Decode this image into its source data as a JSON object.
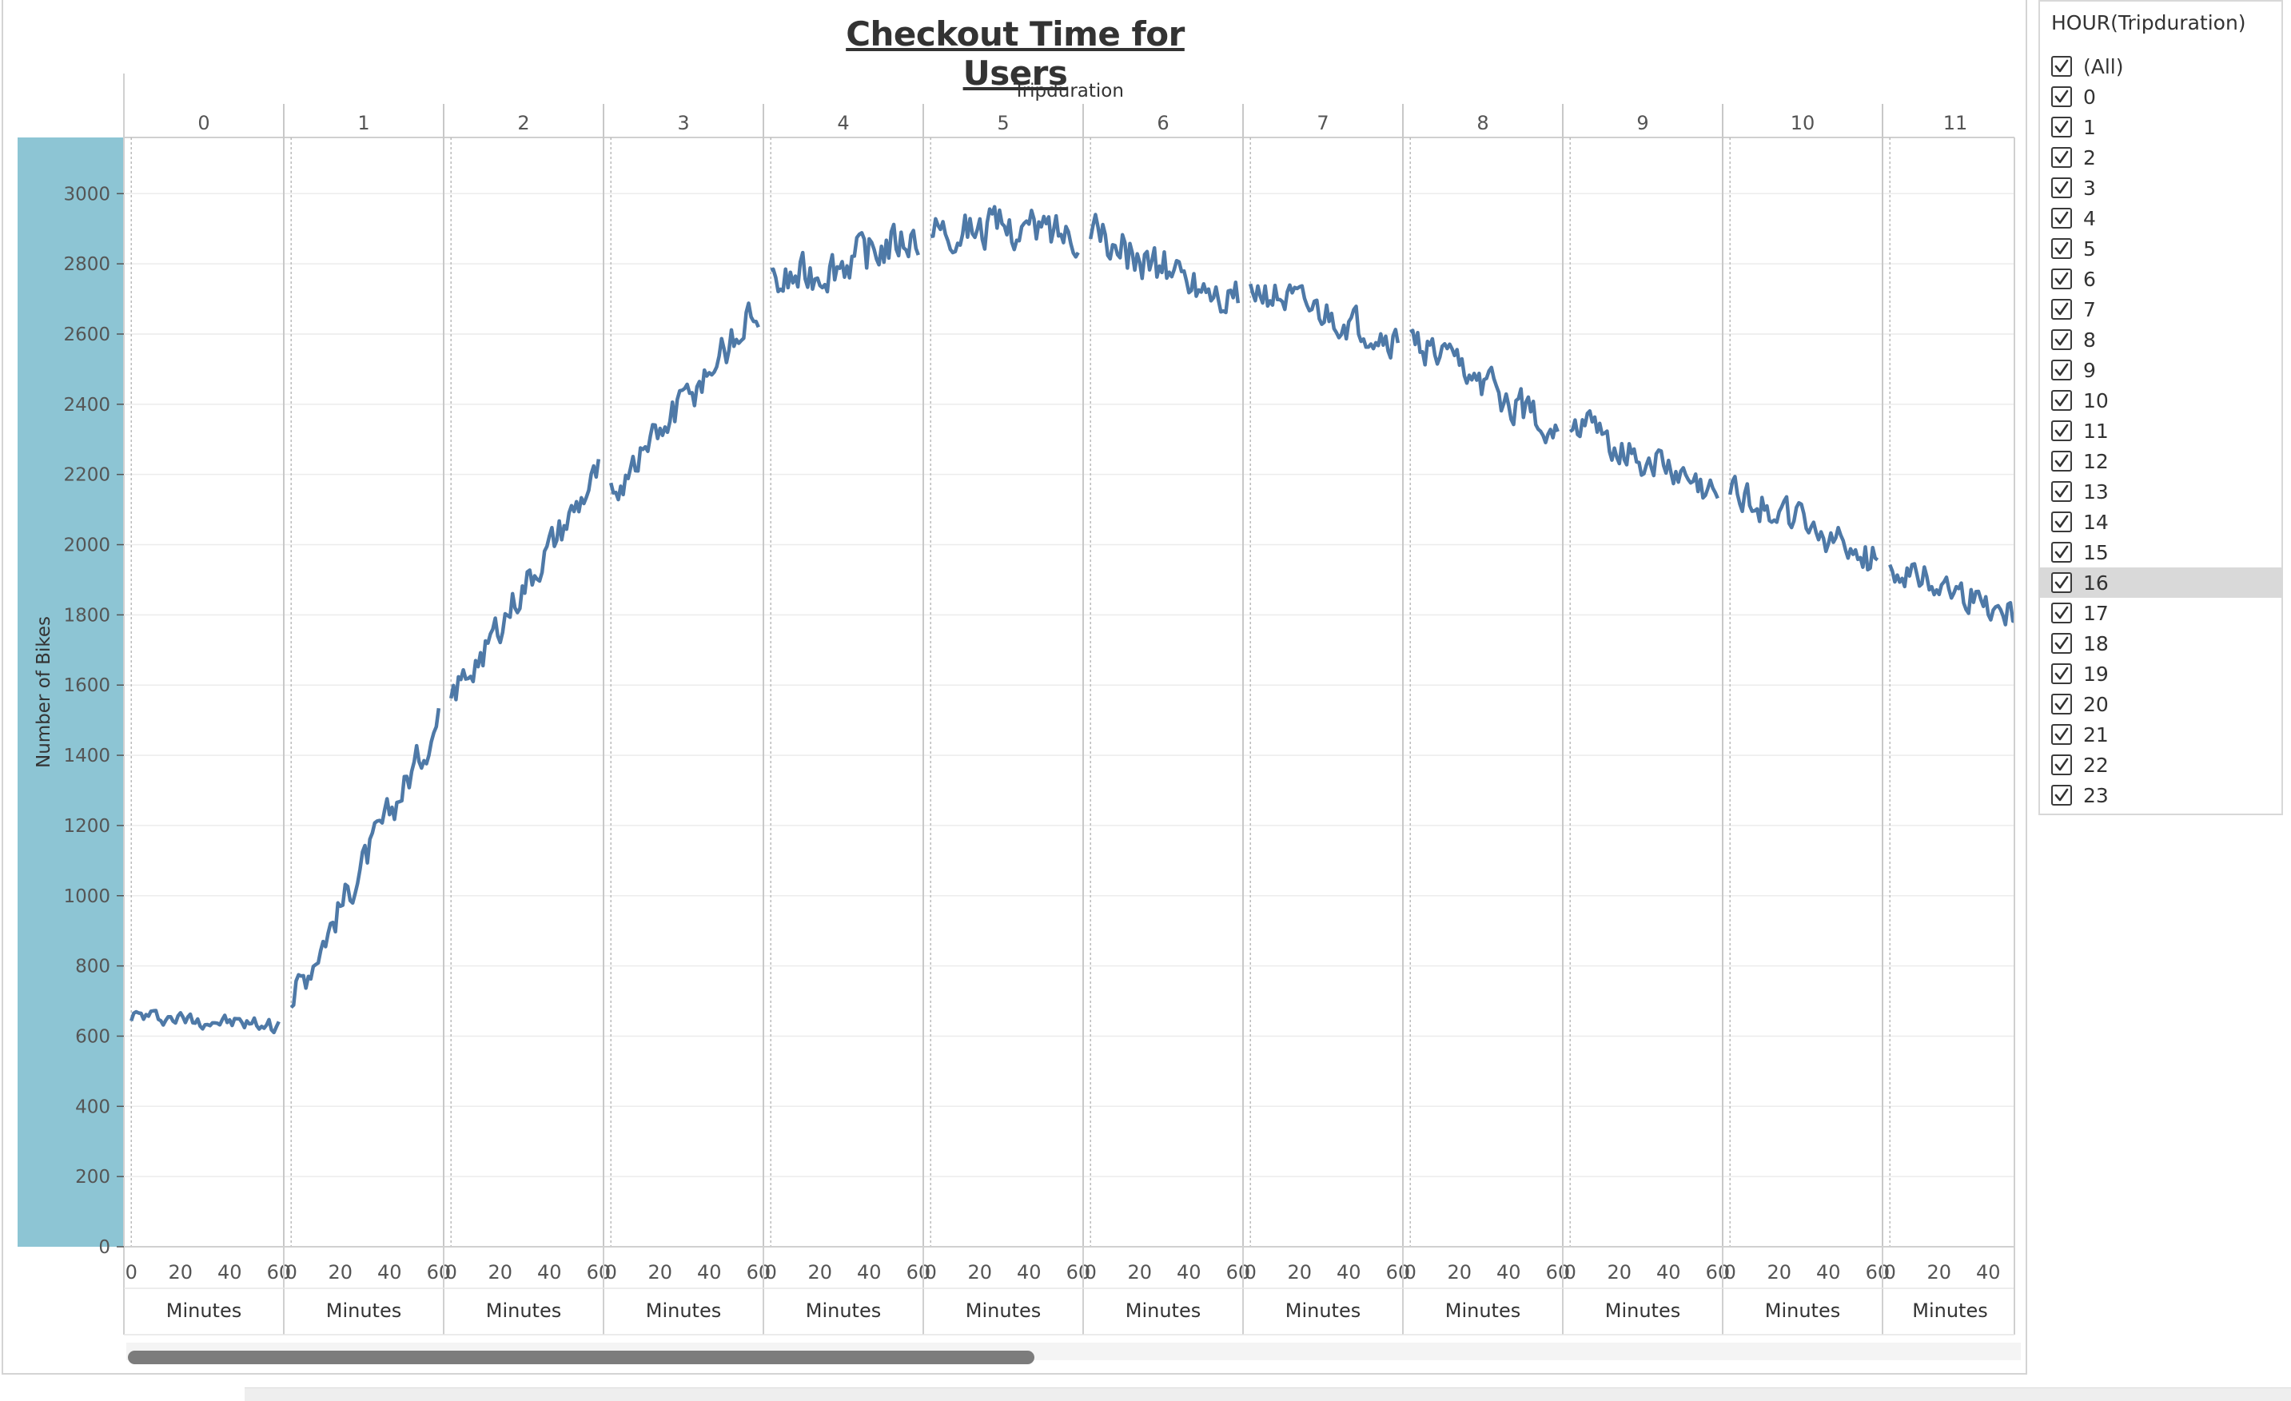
{
  "title": "Checkout Time for Users",
  "chart_data": {
    "type": "line",
    "title": "Checkout Time for Users",
    "column_header": "Tripduration",
    "ylabel": "Number of Bikes",
    "xlabel": "Minutes",
    "panels": [
      "0",
      "1",
      "2",
      "3",
      "4",
      "5",
      "6",
      "7",
      "8",
      "9",
      "10",
      "11"
    ],
    "x_ticks": [
      0,
      20,
      40,
      60
    ],
    "x_ticks_last_panel": [
      0,
      20,
      40
    ],
    "y_ticks": [
      0,
      200,
      400,
      600,
      800,
      1000,
      1200,
      1400,
      1600,
      1800,
      2000,
      2200,
      2400,
      2600,
      2800,
      3000
    ],
    "ylim": [
      0,
      3160
    ],
    "xlim_per_panel": [
      -3,
      62
    ],
    "series": [
      {
        "name": "",
        "color": "#4e79a7",
        "values": [
          {
            "start": 660,
            "end": 630,
            "noise": 30
          },
          {
            "start": 700,
            "end": 1500,
            "noise": 70
          },
          {
            "start": 1560,
            "end": 2200,
            "noise": 70
          },
          {
            "start": 2150,
            "end": 2680,
            "noise": 80
          },
          {
            "start": 2730,
            "end": 2880,
            "noise": 85
          },
          {
            "start": 2910,
            "end": 2890,
            "noise": 80
          },
          {
            "start": 2880,
            "end": 2700,
            "noise": 85
          },
          {
            "start": 2730,
            "end": 2580,
            "noise": 70
          },
          {
            "start": 2570,
            "end": 2330,
            "noise": 75
          },
          {
            "start": 2360,
            "end": 2130,
            "noise": 70
          },
          {
            "start": 2160,
            "end": 1950,
            "noise": 70
          },
          {
            "start": 1940,
            "end": 1780,
            "noise": 65
          }
        ]
      }
    ],
    "grid": true,
    "legend": "none"
  },
  "filter": {
    "title": "HOUR(Tripduration)",
    "options": [
      "(All)",
      "0",
      "1",
      "2",
      "3",
      "4",
      "5",
      "6",
      "7",
      "8",
      "9",
      "10",
      "11",
      "12",
      "13",
      "14",
      "15",
      "16",
      "17",
      "18",
      "19",
      "20",
      "21",
      "22",
      "23"
    ],
    "highlighted": "16"
  }
}
